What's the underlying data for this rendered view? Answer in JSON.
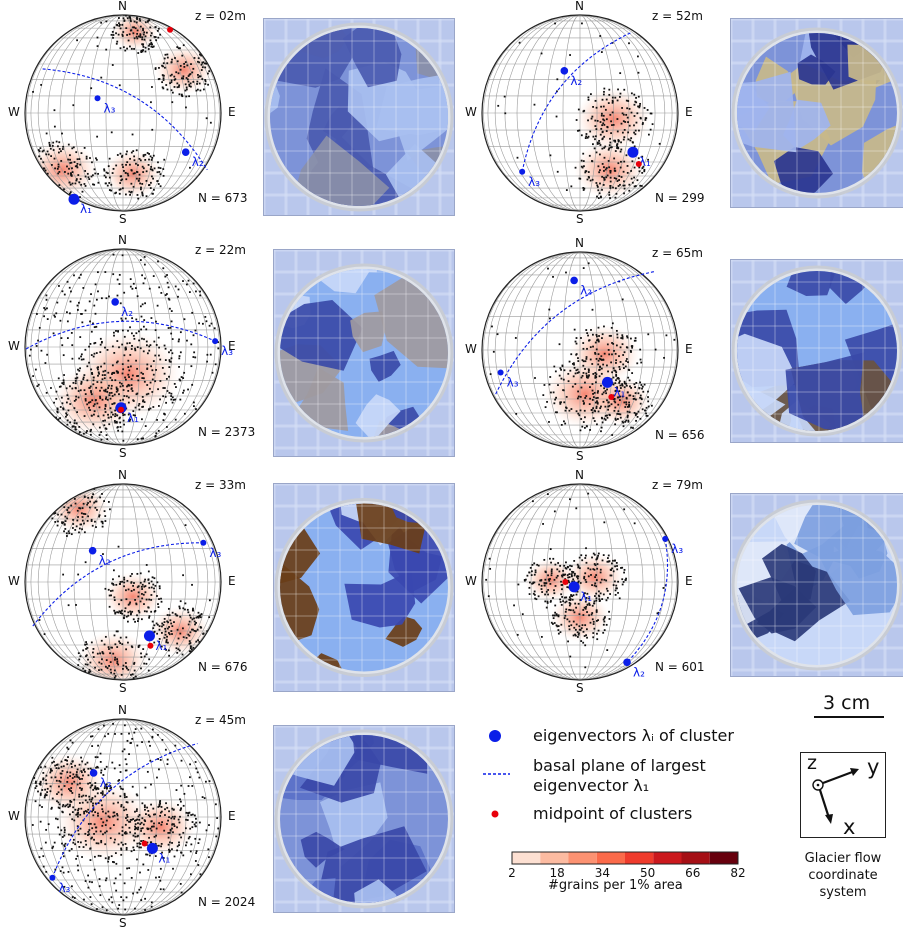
{
  "panels": [
    {
      "depth": "z = 02m",
      "count": "N = 673"
    },
    {
      "depth": "z = 52m",
      "count": "N = 299"
    },
    {
      "depth": "z = 22m",
      "count": "N = 2373"
    },
    {
      "depth": "z = 65m",
      "count": "N = 656"
    },
    {
      "depth": "z = 33m",
      "count": "N = 676"
    },
    {
      "depth": "z = 79m",
      "count": "N = 601"
    },
    {
      "depth": "z = 45m",
      "count": "N = 2024"
    }
  ],
  "compass": {
    "n": "N",
    "s": "S",
    "e": "E",
    "w": "W"
  },
  "eigen": {
    "l1": "λ₁",
    "l2": "λ₂",
    "l3": "λ₃"
  },
  "legend": {
    "eigenvectors": "eigenvectors λᵢ of cluster",
    "basal_line1": "basal plane of largest",
    "basal_line2": "eigenvector λ₁",
    "midpoint": "midpoint of clusters"
  },
  "colorbar": {
    "ticks": [
      "2",
      "18",
      "34",
      "50",
      "66",
      "82"
    ],
    "label": "#grains per 1% area",
    "colors": [
      "#fde0d2",
      "#fcbba1",
      "#fc9272",
      "#fb6a4a",
      "#ef3b2c",
      "#cb181d",
      "#a50f15",
      "#67000d"
    ]
  },
  "scale_bar": "3 cm",
  "coord_system": {
    "z": "z",
    "y": "y",
    "x": "x",
    "caption1": "Glacier flow",
    "caption2": "coordinate",
    "caption3": "system"
  },
  "colors": {
    "eigen": "#0b1ee8",
    "mid": "#e8000b",
    "grid": "#8c8c8c"
  }
}
